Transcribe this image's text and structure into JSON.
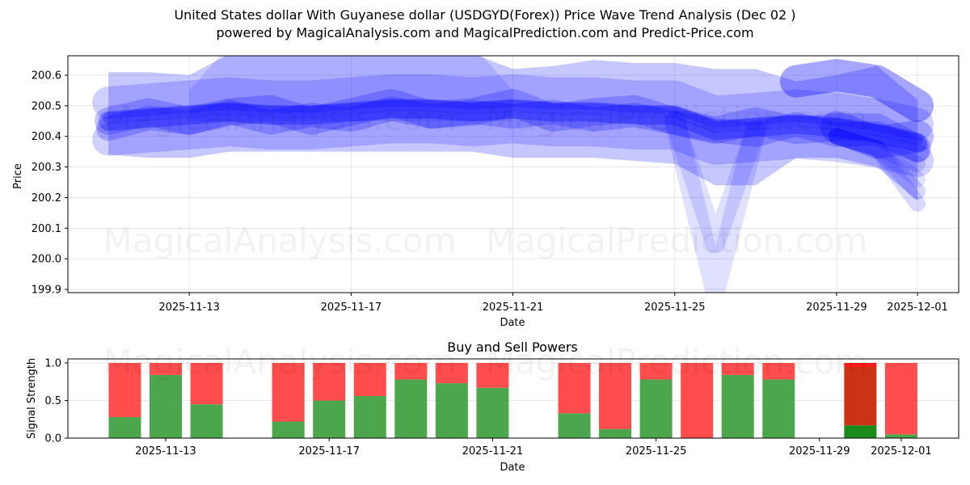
{
  "header": {
    "title_line1": "United States dollar With Guyanese dollar (USDGYD(Forex)) Price Wave Trend Analysis (Dec 02 )",
    "title_line2": "powered by MagicalAnalysis.com and MagicalPrediction.com and Predict-Price.com"
  },
  "watermarks": [
    "MagicalAnalysis.com",
    "MagicalPrediction.com"
  ],
  "colors": {
    "wave": "#0000ff",
    "buy": "#4ca64c",
    "sell": "#ff4c4c",
    "buy_latest": "#1a8a1a",
    "sell_latest": "#cc3314",
    "grid": "#e0e0e0"
  },
  "chart_data": [
    {
      "type": "area",
      "title": "Price Wave Trend Analysis",
      "xlabel": "Date",
      "ylabel": "Price",
      "ylim": [
        199.88,
        200.665
      ],
      "yticks": [
        "199.9",
        "200.0",
        "200.1",
        "200.2",
        "200.3",
        "200.4",
        "200.5",
        "200.6"
      ],
      "xticks": [
        "2025-11-13",
        "2025-11-17",
        "2025-11-21",
        "2025-11-25",
        "2025-11-29",
        "2025-12-01"
      ],
      "grid": true,
      "x": [
        "2025-11-10",
        "2025-11-11",
        "2025-11-12",
        "2025-11-13",
        "2025-11-14",
        "2025-11-15",
        "2025-11-16",
        "2025-11-17",
        "2025-11-18",
        "2025-11-19",
        "2025-11-20",
        "2025-11-21",
        "2025-11-22",
        "2025-11-23",
        "2025-11-24",
        "2025-11-25",
        "2025-11-26",
        "2025-11-27",
        "2025-11-28",
        "2025-11-29",
        "2025-11-30",
        "2025-12-01"
      ],
      "series": [
        {
          "name": "wave-center",
          "values": [
            null,
            200.45,
            200.46,
            200.47,
            200.48,
            200.47,
            200.47,
            200.48,
            200.49,
            200.49,
            200.48,
            200.49,
            200.48,
            200.48,
            200.47,
            200.47,
            200.42,
            200.43,
            200.44,
            200.43,
            200.41,
            200.38
          ]
        },
        {
          "name": "wave-upper",
          "values": [
            null,
            200.61,
            200.61,
            200.6,
            200.67,
            200.67,
            200.67,
            200.67,
            200.67,
            200.67,
            200.67,
            200.62,
            200.63,
            200.65,
            200.64,
            200.64,
            200.62,
            200.62,
            200.58,
            200.6,
            200.63,
            200.52
          ]
        },
        {
          "name": "wave-lower",
          "values": [
            null,
            200.34,
            200.33,
            200.33,
            200.35,
            200.35,
            200.35,
            200.35,
            200.35,
            200.35,
            200.35,
            200.33,
            200.33,
            200.33,
            200.32,
            200.31,
            200.24,
            200.24,
            200.33,
            200.33,
            200.3,
            200.19
          ]
        },
        {
          "name": "wave-dip",
          "values": [
            null,
            null,
            null,
            null,
            null,
            null,
            null,
            null,
            null,
            null,
            null,
            null,
            null,
            null,
            null,
            200.45,
            199.9,
            200.42,
            null,
            null,
            null,
            null
          ]
        }
      ],
      "watermarks": [
        "MagicalAnalysis.com",
        "MagicalPrediction.com"
      ]
    },
    {
      "type": "bar",
      "stacked": true,
      "title": "Buy and Sell Powers",
      "xlabel": "Date",
      "ylabel": "Signal Strength",
      "ylim": [
        0,
        1.05
      ],
      "yticks": [
        "0.0",
        "0.5",
        "1.0"
      ],
      "xticks": [
        "2025-11-13",
        "2025-11-17",
        "2025-11-21",
        "2025-11-25",
        "2025-11-29",
        "2025-12-01"
      ],
      "categories": [
        "2025-11-12",
        "2025-11-13",
        "2025-11-14",
        "2025-11-16",
        "2025-11-17",
        "2025-11-18",
        "2025-11-19",
        "2025-11-20",
        "2025-11-21",
        "2025-11-23",
        "2025-11-24",
        "2025-11-25",
        "2025-11-26",
        "2025-11-27",
        "2025-11-28",
        "2025-11-30",
        "2025-12-01"
      ],
      "series": [
        {
          "name": "Buy",
          "color": "#4ca64c",
          "values": [
            0.28,
            0.84,
            0.45,
            0.22,
            0.5,
            0.56,
            0.78,
            0.73,
            0.67,
            0.33,
            0.12,
            0.78,
            0.0,
            0.84,
            0.78,
            0.17,
            0.05
          ]
        },
        {
          "name": "Sell",
          "color": "#ff4c4c",
          "values": [
            0.72,
            0.16,
            0.55,
            0.78,
            0.5,
            0.44,
            0.22,
            0.27,
            0.33,
            0.67,
            0.88,
            0.22,
            1.0,
            0.16,
            0.22,
            0.83,
            0.95
          ]
        }
      ],
      "grid": true
    }
  ]
}
